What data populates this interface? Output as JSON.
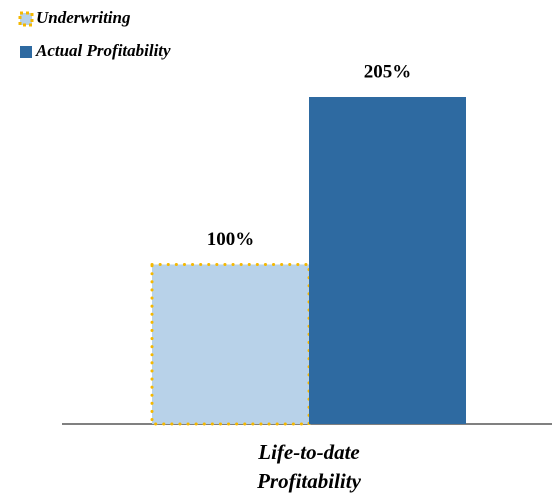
{
  "chart_data": {
    "type": "bar",
    "categories": [
      "Life-to-date Profitability"
    ],
    "series": [
      {
        "name": "Underwriting",
        "color": "#b8d2e9",
        "edge_color": "#f5b800",
        "values": [
          100
        ],
        "value_labels": [
          "100%"
        ]
      },
      {
        "name": "Actual Profitability",
        "color": "#2e6aa1",
        "values": [
          205
        ],
        "value_labels": [
          "205%"
        ]
      }
    ],
    "legend": "top-left"
  }
}
